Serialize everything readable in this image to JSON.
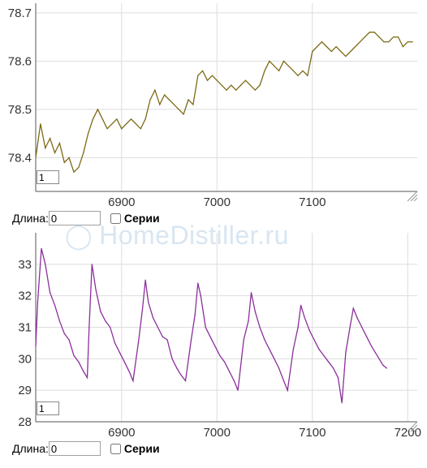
{
  "watermark": "HomeDistiller.ru",
  "colors": {
    "series1": "#7d6a16",
    "series2": "#8b2f9b",
    "grid": "#dddddd",
    "axis": "#555555"
  },
  "charts": [
    {
      "roll_value": "1",
      "controls": {
        "length_label": "Длина:",
        "length_value": "0",
        "series_label": "Серии"
      }
    },
    {
      "roll_value": "1",
      "controls": {
        "length_label": "Длина:",
        "length_value": "0",
        "series_label": "Серии"
      }
    }
  ],
  "chart_data": [
    {
      "type": "line",
      "xlim": [
        6810,
        7210
      ],
      "ylim": [
        78.33,
        78.72
      ],
      "x_ticks": [
        6900,
        7000,
        7100
      ],
      "x_tick_labels": [
        "6900",
        "7000",
        "7100"
      ],
      "y_ticks": [
        78.4,
        78.5,
        78.6,
        78.7
      ],
      "y_tick_labels": [
        "78.4",
        "78.5",
        "78.6",
        "78.7"
      ],
      "grid": true,
      "series": [
        {
          "color": "#7d6a16",
          "points": [
            [
              6810,
              78.4
            ],
            [
              6815,
              78.47
            ],
            [
              6820,
              78.42
            ],
            [
              6825,
              78.44
            ],
            [
              6830,
              78.41
            ],
            [
              6835,
              78.43
            ],
            [
              6840,
              78.39
            ],
            [
              6845,
              78.4
            ],
            [
              6850,
              78.37
            ],
            [
              6855,
              78.38
            ],
            [
              6860,
              78.41
            ],
            [
              6865,
              78.45
            ],
            [
              6870,
              78.48
            ],
            [
              6875,
              78.5
            ],
            [
              6880,
              78.48
            ],
            [
              6885,
              78.46
            ],
            [
              6890,
              78.47
            ],
            [
              6895,
              78.48
            ],
            [
              6900,
              78.46
            ],
            [
              6905,
              78.47
            ],
            [
              6910,
              78.48
            ],
            [
              6915,
              78.47
            ],
            [
              6920,
              78.46
            ],
            [
              6925,
              78.48
            ],
            [
              6930,
              78.52
            ],
            [
              6935,
              78.54
            ],
            [
              6940,
              78.51
            ],
            [
              6945,
              78.53
            ],
            [
              6950,
              78.52
            ],
            [
              6955,
              78.51
            ],
            [
              6960,
              78.5
            ],
            [
              6965,
              78.49
            ],
            [
              6970,
              78.52
            ],
            [
              6975,
              78.51
            ],
            [
              6980,
              78.57
            ],
            [
              6985,
              78.58
            ],
            [
              6990,
              78.56
            ],
            [
              6995,
              78.57
            ],
            [
              7000,
              78.56
            ],
            [
              7005,
              78.55
            ],
            [
              7010,
              78.54
            ],
            [
              7015,
              78.55
            ],
            [
              7020,
              78.54
            ],
            [
              7025,
              78.55
            ],
            [
              7030,
              78.56
            ],
            [
              7035,
              78.55
            ],
            [
              7040,
              78.54
            ],
            [
              7045,
              78.55
            ],
            [
              7050,
              78.58
            ],
            [
              7055,
              78.6
            ],
            [
              7060,
              78.59
            ],
            [
              7065,
              78.58
            ],
            [
              7070,
              78.6
            ],
            [
              7075,
              78.59
            ],
            [
              7080,
              78.58
            ],
            [
              7085,
              78.57
            ],
            [
              7090,
              78.58
            ],
            [
              7095,
              78.57
            ],
            [
              7100,
              78.62
            ],
            [
              7105,
              78.63
            ],
            [
              7110,
              78.64
            ],
            [
              7115,
              78.63
            ],
            [
              7120,
              78.62
            ],
            [
              7125,
              78.63
            ],
            [
              7130,
              78.62
            ],
            [
              7135,
              78.61
            ],
            [
              7140,
              78.62
            ],
            [
              7145,
              78.63
            ],
            [
              7150,
              78.64
            ],
            [
              7155,
              78.65
            ],
            [
              7160,
              78.66
            ],
            [
              7165,
              78.66
            ],
            [
              7170,
              78.65
            ],
            [
              7175,
              78.64
            ],
            [
              7180,
              78.64
            ],
            [
              7185,
              78.65
            ],
            [
              7190,
              78.65
            ],
            [
              7195,
              78.63
            ],
            [
              7200,
              78.64
            ],
            [
              7205,
              78.64
            ]
          ]
        }
      ]
    },
    {
      "type": "line",
      "xlim": [
        6810,
        7210
      ],
      "ylim": [
        28,
        34
      ],
      "x_ticks": [
        6900,
        7000,
        7100,
        7200
      ],
      "x_tick_labels": [
        "6900",
        "7000",
        "7100",
        "7200"
      ],
      "y_ticks": [
        28,
        29,
        30,
        31,
        32,
        33
      ],
      "y_tick_labels": [
        "28",
        "29",
        "30",
        "31",
        "32",
        "33"
      ],
      "grid": true,
      "series": [
        {
          "color": "#8b2f9b",
          "points": [
            [
              6810,
              30.4
            ],
            [
              6812,
              31.8
            ],
            [
              6816,
              33.5
            ],
            [
              6820,
              33.0
            ],
            [
              6825,
              32.1
            ],
            [
              6830,
              31.7
            ],
            [
              6835,
              31.2
            ],
            [
              6840,
              30.8
            ],
            [
              6845,
              30.6
            ],
            [
              6850,
              30.1
            ],
            [
              6855,
              29.9
            ],
            [
              6860,
              29.6
            ],
            [
              6864,
              29.4
            ],
            [
              6866,
              31.0
            ],
            [
              6869,
              33.0
            ],
            [
              6873,
              32.2
            ],
            [
              6878,
              31.5
            ],
            [
              6883,
              31.2
            ],
            [
              6888,
              31.0
            ],
            [
              6893,
              30.5
            ],
            [
              6898,
              30.2
            ],
            [
              6903,
              29.9
            ],
            [
              6908,
              29.6
            ],
            [
              6912,
              29.3
            ],
            [
              6918,
              30.6
            ],
            [
              6922,
              31.6
            ],
            [
              6925,
              32.5
            ],
            [
              6928,
              31.8
            ],
            [
              6933,
              31.3
            ],
            [
              6938,
              31.0
            ],
            [
              6943,
              30.7
            ],
            [
              6948,
              30.6
            ],
            [
              6953,
              30.0
            ],
            [
              6958,
              29.7
            ],
            [
              6962,
              29.5
            ],
            [
              6967,
              29.3
            ],
            [
              6973,
              30.6
            ],
            [
              6977,
              31.4
            ],
            [
              6980,
              32.4
            ],
            [
              6983,
              32.0
            ],
            [
              6988,
              31.0
            ],
            [
              6993,
              30.7
            ],
            [
              6998,
              30.4
            ],
            [
              7003,
              30.1
            ],
            [
              7008,
              29.9
            ],
            [
              7013,
              29.6
            ],
            [
              7018,
              29.3
            ],
            [
              7022,
              29.0
            ],
            [
              7028,
              30.6
            ],
            [
              7033,
              31.2
            ],
            [
              7036,
              32.1
            ],
            [
              7040,
              31.5
            ],
            [
              7045,
              31.0
            ],
            [
              7050,
              30.6
            ],
            [
              7055,
              30.3
            ],
            [
              7060,
              30.0
            ],
            [
              7065,
              29.7
            ],
            [
              7070,
              29.3
            ],
            [
              7074,
              29.0
            ],
            [
              7080,
              30.3
            ],
            [
              7085,
              31.0
            ],
            [
              7088,
              31.7
            ],
            [
              7092,
              31.3
            ],
            [
              7097,
              30.9
            ],
            [
              7102,
              30.6
            ],
            [
              7107,
              30.3
            ],
            [
              7112,
              30.1
            ],
            [
              7117,
              29.9
            ],
            [
              7122,
              29.7
            ],
            [
              7127,
              29.4
            ],
            [
              7131,
              28.6
            ],
            [
              7135,
              30.2
            ],
            [
              7140,
              31.1
            ],
            [
              7143,
              31.6
            ],
            [
              7147,
              31.3
            ],
            [
              7152,
              31.0
            ],
            [
              7157,
              30.7
            ],
            [
              7162,
              30.4
            ],
            [
              7166,
              30.2
            ],
            [
              7170,
              30.0
            ],
            [
              7174,
              29.8
            ],
            [
              7178,
              29.7
            ]
          ]
        }
      ]
    }
  ]
}
